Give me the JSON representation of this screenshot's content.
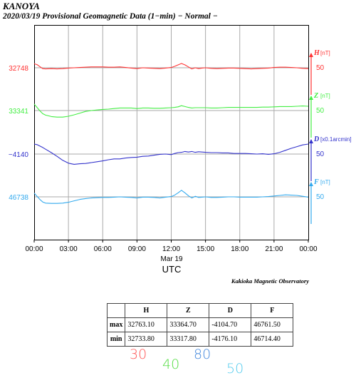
{
  "header": {
    "station": "KANOYA",
    "subtitle": "2020/03/19  Provisional Geomagnetic Data (1−min)  − Normal −"
  },
  "credit": "Kakioka Magnetic Observatory",
  "chart_data": {
    "type": "line",
    "x_ticks": [
      "00:00",
      "03:00",
      "06:00",
      "09:00",
      "12:00",
      "15:00",
      "18:00",
      "21:00",
      "00:00"
    ],
    "date_label": "Mar 19",
    "xlabel": "UTC",
    "grid": true,
    "series": [
      {
        "name": "H",
        "unit": "[nT]",
        "color": "#ff3333",
        "left_label": "32748",
        "scale_label": "50",
        "x": [
          0,
          0.25,
          0.5,
          0.75,
          1,
          1.5,
          2,
          2.5,
          3,
          3.5,
          4,
          4.5,
          5,
          5.5,
          6,
          6.5,
          7,
          7.5,
          8,
          8.5,
          9,
          9.5,
          10,
          10.5,
          11,
          11.5,
          12,
          12.3,
          12.6,
          12.9,
          13.2,
          13.5,
          13.8,
          14.1,
          14.4,
          14.7,
          15,
          15.5,
          16,
          16.5,
          17,
          17.5,
          18,
          18.5,
          19,
          19.5,
          20,
          20.5,
          21,
          21.5,
          22,
          22.5,
          23,
          23.5,
          24
        ],
        "y": [
          32762,
          32759,
          32752,
          32745,
          32744,
          32745,
          32744,
          32745,
          32747,
          32748,
          32749,
          32750,
          32751,
          32751,
          32751,
          32750,
          32750,
          32751,
          32749,
          32747,
          32745,
          32748,
          32747,
          32746,
          32745,
          32747,
          32749,
          32753,
          32758,
          32763,
          32758,
          32751,
          32744,
          32748,
          32745,
          32747,
          32748,
          32746,
          32745,
          32746,
          32747,
          32747,
          32746,
          32745,
          32744,
          32745,
          32746,
          32747,
          32749,
          32750,
          32750,
          32749,
          32748,
          32746,
          32745
        ]
      },
      {
        "name": "Z",
        "unit": "[nT]",
        "color": "#44ee44",
        "left_label": "33341",
        "scale_label": "50",
        "x": [
          0,
          0.25,
          0.5,
          0.75,
          1,
          1.5,
          2,
          2.5,
          3,
          3.5,
          4,
          4.5,
          5,
          5.5,
          6,
          6.5,
          7,
          7.5,
          8,
          8.5,
          9,
          9.5,
          10,
          10.5,
          11,
          11.5,
          12,
          12.3,
          12.6,
          12.9,
          13.2,
          13.5,
          13.8,
          14.1,
          14.4,
          14.7,
          15,
          15.5,
          16,
          16.5,
          17,
          17.5,
          18,
          18.5,
          19,
          19.5,
          20,
          20.5,
          21,
          21.5,
          22,
          22.5,
          23,
          23.5,
          24
        ],
        "y": [
          33364,
          33352,
          33340,
          33330,
          33325,
          33320,
          33318,
          33318,
          33321,
          33326,
          33332,
          33338,
          33341,
          33343,
          33345,
          33346,
          33348,
          33350,
          33350,
          33350,
          33348,
          33350,
          33350,
          33349,
          33349,
          33350,
          33351,
          33352,
          33354,
          33358,
          33355,
          33352,
          33350,
          33351,
          33351,
          33351,
          33351,
          33350,
          33350,
          33351,
          33352,
          33352,
          33352,
          33352,
          33352,
          33352,
          33353,
          33353,
          33354,
          33355,
          33355,
          33355,
          33356,
          33357,
          33356
        ]
      },
      {
        "name": "D",
        "unit": "[x0.1arcmin]",
        "color": "#3333cc",
        "left_label": "−4140",
        "scale_label": "50",
        "x": [
          0,
          0.25,
          0.5,
          0.75,
          1,
          1.5,
          2,
          2.5,
          3,
          3.5,
          4,
          4.5,
          5,
          5.5,
          6,
          6.5,
          7,
          7.5,
          8,
          8.5,
          9,
          9.5,
          10,
          10.5,
          11,
          11.5,
          12,
          12.3,
          12.6,
          12.9,
          13.2,
          13.5,
          13.8,
          14.1,
          14.4,
          14.7,
          15,
          15.5,
          16,
          16.5,
          17,
          17.5,
          18,
          18.5,
          19,
          19.5,
          20,
          20.5,
          21,
          21.5,
          22,
          22.5,
          23,
          23.5,
          24
        ],
        "y": [
          -4105,
          -4107,
          -4112,
          -4117,
          -4123,
          -4135,
          -4148,
          -4162,
          -4172,
          -4176,
          -4174,
          -4173,
          -4170,
          -4167,
          -4164,
          -4160,
          -4157,
          -4157,
          -4154,
          -4152,
          -4151,
          -4148,
          -4147,
          -4144,
          -4141,
          -4140,
          -4142,
          -4138,
          -4135,
          -4134,
          -4131,
          -4133,
          -4131,
          -4134,
          -4132,
          -4133,
          -4134,
          -4135,
          -4135,
          -4136,
          -4136,
          -4138,
          -4138,
          -4138,
          -4139,
          -4140,
          -4139,
          -4141,
          -4139,
          -4134,
          -4127,
          -4120,
          -4114,
          -4108,
          -4105
        ]
      },
      {
        "name": "F",
        "unit": "[nT]",
        "color": "#33aaee",
        "left_label": "46738",
        "scale_label": "50",
        "x": [
          0,
          0.25,
          0.5,
          0.75,
          1,
          1.5,
          2,
          2.5,
          3,
          3.5,
          4,
          4.5,
          5,
          5.5,
          6,
          6.5,
          7,
          7.5,
          8,
          8.5,
          9,
          9.5,
          10,
          10.5,
          11,
          11.5,
          12,
          12.3,
          12.6,
          12.9,
          13.2,
          13.5,
          13.8,
          14.1,
          14.4,
          14.7,
          15,
          15.5,
          16,
          16.5,
          17,
          17.5,
          18,
          18.5,
          19,
          19.5,
          20,
          20.5,
          21,
          21.5,
          22,
          22.5,
          23,
          23.5,
          24
        ],
        "y": [
          46751,
          46740,
          46729,
          46720,
          46716,
          46715,
          46715,
          46716,
          46719,
          46724,
          46729,
          46732,
          46734,
          46735,
          46736,
          46736,
          46737,
          46738,
          46737,
          46736,
          46734,
          46737,
          46737,
          46736,
          46734,
          46737,
          46739,
          46744,
          46752,
          46761,
          46752,
          46742,
          46734,
          46740,
          46736,
          46737,
          46738,
          46736,
          46736,
          46737,
          46738,
          46738,
          46737,
          46737,
          46737,
          46737,
          46738,
          46739,
          46741,
          46743,
          46745,
          46744,
          46743,
          46740,
          46737
        ]
      }
    ]
  },
  "table": {
    "headers": [
      "",
      "H",
      "Z",
      "D",
      "F"
    ],
    "rows": [
      [
        "max",
        "32763.10",
        "33364.70",
        "-4104.70",
        "46761.50"
      ],
      [
        "min",
        "32733.80",
        "33317.80",
        "-4176.10",
        "46714.40"
      ]
    ]
  },
  "legend_numbers": [
    {
      "text": "30",
      "color": "#ff5555"
    },
    {
      "text": "40",
      "color": "#55dd44"
    },
    {
      "text": "80",
      "color": "#4488dd"
    },
    {
      "text": "50",
      "color": "#55ccee"
    }
  ]
}
